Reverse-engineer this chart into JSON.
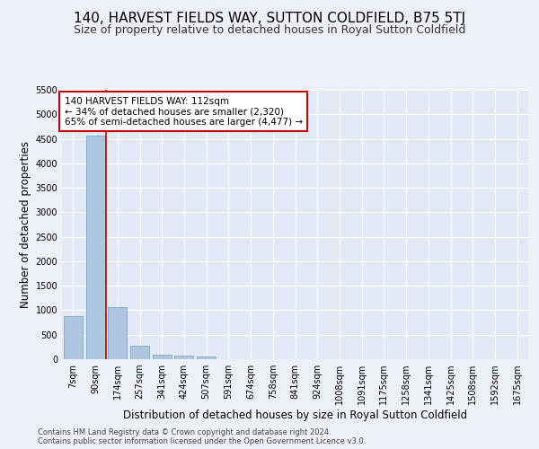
{
  "title": "140, HARVEST FIELDS WAY, SUTTON COLDFIELD, B75 5TJ",
  "subtitle": "Size of property relative to detached houses in Royal Sutton Coldfield",
  "xlabel": "Distribution of detached houses by size in Royal Sutton Coldfield",
  "ylabel": "Number of detached properties",
  "footnote1": "Contains HM Land Registry data © Crown copyright and database right 2024.",
  "footnote2": "Contains public sector information licensed under the Open Government Licence v3.0.",
  "bar_labels": [
    "7sqm",
    "90sqm",
    "174sqm",
    "257sqm",
    "341sqm",
    "424sqm",
    "507sqm",
    "591sqm",
    "674sqm",
    "758sqm",
    "841sqm",
    "924sqm",
    "1008sqm",
    "1091sqm",
    "1175sqm",
    "1258sqm",
    "1341sqm",
    "1425sqm",
    "1508sqm",
    "1592sqm",
    "1675sqm"
  ],
  "bar_values": [
    880,
    4560,
    1060,
    280,
    90,
    80,
    60,
    0,
    0,
    0,
    0,
    0,
    0,
    0,
    0,
    0,
    0,
    0,
    0,
    0,
    0
  ],
  "bar_color": "#aec6df",
  "bar_edge_color": "#7aaac8",
  "vline_x": 1.5,
  "vline_color": "#cc0000",
  "annotation_text": "140 HARVEST FIELDS WAY: 112sqm\n← 34% of detached houses are smaller (2,320)\n65% of semi-detached houses are larger (4,477) →",
  "annotation_box_color": "#ffffff",
  "annotation_box_edge": "#cc0000",
  "ylim": [
    0,
    5500
  ],
  "yticks": [
    0,
    500,
    1000,
    1500,
    2000,
    2500,
    3000,
    3500,
    4000,
    4500,
    5000,
    5500
  ],
  "background_color": "#edf1f7",
  "plot_bg_color": "#e2e9f4",
  "title_fontsize": 11,
  "subtitle_fontsize": 9,
  "axis_label_fontsize": 8.5,
  "tick_fontsize": 7,
  "annotation_fontsize": 7.5,
  "footnote_fontsize": 6
}
